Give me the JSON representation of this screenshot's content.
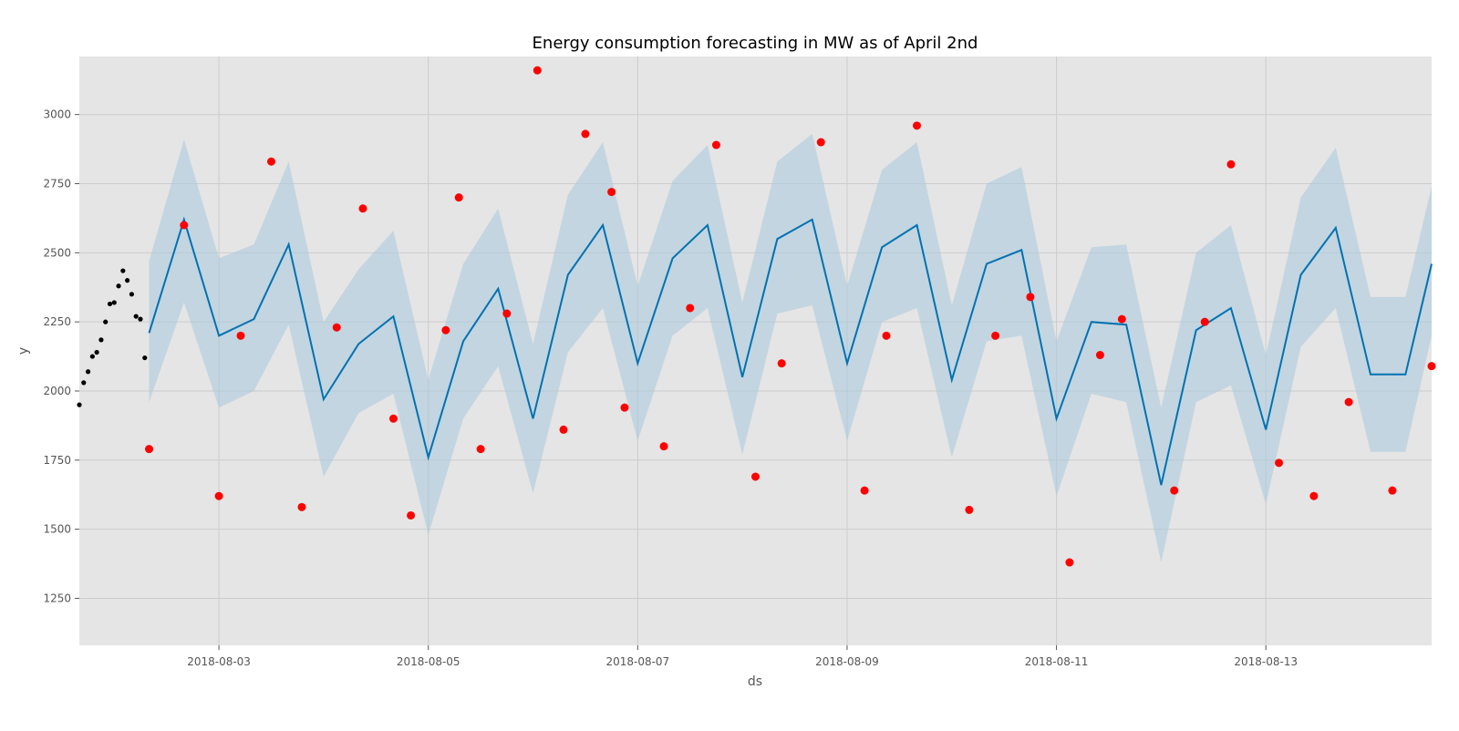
{
  "chart_data": {
    "type": "line",
    "title": "Energy consumption forecasting in MW as of April 2nd",
    "xlabel": "ds",
    "ylabel": "y",
    "x_range": [
      "2018-08-01T16:00",
      "2018-08-14T14:00"
    ],
    "ylim": [
      1080,
      3210
    ],
    "grid": true,
    "x_ticks": [
      "2018-08-03",
      "2018-08-05",
      "2018-08-07",
      "2018-08-09",
      "2018-08-11",
      "2018-08-13"
    ],
    "y_ticks": [
      1250,
      1500,
      1750,
      2000,
      2250,
      2500,
      2750,
      3000
    ],
    "colors": {
      "background": "#e5e5e5",
      "grid": "#cccccc",
      "forecast": "#0072b2",
      "interval": "#a8c8dc",
      "history": "#000000",
      "actual": "#ff0000"
    },
    "series": [
      {
        "kind": "history",
        "x": [
          "2018-08-01 16:00",
          "2018-08-01 17:00",
          "2018-08-01 18:00",
          "2018-08-01 19:00",
          "2018-08-01 20:00",
          "2018-08-01 21:00",
          "2018-08-01 22:00",
          "2018-08-01 23:00",
          "2018-08-02 00:00",
          "2018-08-02 01:00",
          "2018-08-02 02:00",
          "2018-08-02 03:00",
          "2018-08-02 04:00",
          "2018-08-02 05:00",
          "2018-08-02 06:00",
          "2018-08-02 07:00"
        ],
        "y": [
          1950,
          2030,
          2070,
          2125,
          2140,
          2185,
          2250,
          2315,
          2320,
          2380,
          2435,
          2400,
          2350,
          2270,
          2260,
          2120
        ]
      },
      {
        "kind": "forecast",
        "x": [
          "2018-08-02 08:00",
          "2018-08-02 16:00",
          "2018-08-03 00:00",
          "2018-08-03 08:00",
          "2018-08-03 16:00",
          "2018-08-04 00:00",
          "2018-08-04 08:00",
          "2018-08-04 16:00",
          "2018-08-05 00:00",
          "2018-08-05 08:00",
          "2018-08-05 16:00",
          "2018-08-06 00:00",
          "2018-08-06 08:00",
          "2018-08-06 16:00",
          "2018-08-07 00:00",
          "2018-08-07 08:00",
          "2018-08-07 16:00",
          "2018-08-08 00:00",
          "2018-08-08 08:00",
          "2018-08-08 16:00",
          "2018-08-09 00:00",
          "2018-08-09 08:00",
          "2018-08-09 16:00",
          "2018-08-10 00:00",
          "2018-08-10 08:00",
          "2018-08-10 16:00",
          "2018-08-11 00:00",
          "2018-08-11 08:00",
          "2018-08-11 16:00",
          "2018-08-12 00:00",
          "2018-08-12 08:00",
          "2018-08-12 16:00",
          "2018-08-13 00:00",
          "2018-08-13 08:00",
          "2018-08-13 16:00",
          "2018-08-14 00:00",
          "2018-08-14 08:00",
          "2018-08-14 14:00"
        ],
        "y": [
          2210,
          2620,
          2200,
          2260,
          2530,
          1970,
          2170,
          2270,
          1760,
          2180,
          2370,
          1900,
          2420,
          2600,
          2100,
          2480,
          2600,
          2050,
          2550,
          2620,
          2100,
          2520,
          2600,
          2040,
          2460,
          2510,
          1900,
          2250,
          2240,
          1660,
          2220,
          2300,
          1860,
          2420,
          2590,
          2060,
          2060,
          2460
        ],
        "lower": [
          1960,
          2320,
          1940,
          2000,
          2240,
          1690,
          1920,
          1990,
          1480,
          1900,
          2090,
          1630,
          2140,
          2300,
          1820,
          2200,
          2300,
          1770,
          2280,
          2310,
          1820,
          2250,
          2300,
          1760,
          2180,
          2200,
          1620,
          1990,
          1960,
          1380,
          1960,
          2020,
          1590,
          2160,
          2300,
          1780,
          1780,
          2200
        ],
        "upper": [
          2470,
          2910,
          2480,
          2530,
          2830,
          2250,
          2440,
          2580,
          2040,
          2460,
          2660,
          2170,
          2710,
          2900,
          2380,
          2760,
          2890,
          2320,
          2830,
          2930,
          2380,
          2800,
          2900,
          2310,
          2750,
          2810,
          2180,
          2520,
          2530,
          1940,
          2500,
          2600,
          2130,
          2700,
          2880,
          2340,
          2340,
          2740
        ]
      },
      {
        "kind": "actual",
        "x": [
          "2018-08-02 08:00",
          "2018-08-02 16:00",
          "2018-08-03 00:00",
          "2018-08-03 05:00",
          "2018-08-03 12:00",
          "2018-08-03 19:00",
          "2018-08-04 03:00",
          "2018-08-04 09:00",
          "2018-08-04 16:00",
          "2018-08-04 20:00",
          "2018-08-05 04:00",
          "2018-08-05 07:00",
          "2018-08-05 12:00",
          "2018-08-05 18:00",
          "2018-08-06 01:00",
          "2018-08-06 07:00",
          "2018-08-06 12:00",
          "2018-08-06 18:00",
          "2018-08-06 21:00",
          "2018-08-07 06:00",
          "2018-08-07 12:00",
          "2018-08-07 18:00",
          "2018-08-08 03:00",
          "2018-08-08 09:00",
          "2018-08-08 18:00",
          "2018-08-09 04:00",
          "2018-08-09 09:00",
          "2018-08-09 16:00",
          "2018-08-10 04:00",
          "2018-08-10 10:00",
          "2018-08-10 18:00",
          "2018-08-11 03:00",
          "2018-08-11 10:00",
          "2018-08-11 15:00",
          "2018-08-12 03:00",
          "2018-08-12 10:00",
          "2018-08-12 16:00",
          "2018-08-13 03:00",
          "2018-08-13 11:00",
          "2018-08-13 19:00",
          "2018-08-14 05:00",
          "2018-08-14 14:00"
        ],
        "y": [
          1790,
          2600,
          1620,
          2200,
          2830,
          1580,
          2230,
          2660,
          1900,
          1550,
          2220,
          2700,
          1790,
          2280,
          3160,
          1860,
          2930,
          2720,
          1940,
          1800,
          2300,
          2890,
          1690,
          2100,
          2900,
          1640,
          2200,
          2960,
          1570,
          2200,
          2340,
          1380,
          2130,
          2260,
          1640,
          2250,
          2820,
          1740,
          1620,
          1960,
          1640,
          2090
        ]
      }
    ]
  }
}
